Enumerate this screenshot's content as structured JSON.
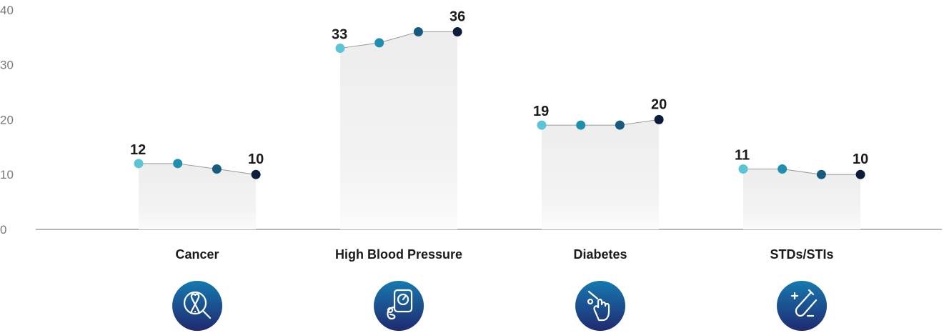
{
  "chart_data": {
    "type": "line",
    "title": "",
    "xlabel": "",
    "ylabel": "",
    "ylim": [
      0,
      40
    ],
    "yticks": [
      0,
      10,
      20,
      30,
      40
    ],
    "grid": false,
    "categories": [
      {
        "label": "Cancer",
        "icon": "ribbon-magnifier-icon",
        "values": [
          12,
          12,
          11,
          10
        ],
        "labels": [
          "12",
          "10"
        ]
      },
      {
        "label": "High Blood Pressure",
        "icon": "blood-pressure-monitor-icon",
        "values": [
          33,
          34,
          36,
          36
        ],
        "labels": [
          "33",
          "36"
        ]
      },
      {
        "label": "Diabetes",
        "icon": "glucose-finger-prick-icon",
        "values": [
          19,
          19,
          19,
          20
        ],
        "labels": [
          "19",
          "20"
        ]
      },
      {
        "label": "STDs/STIs",
        "icon": "test-tube-plus-minus-icon",
        "values": [
          11,
          11,
          10,
          10
        ],
        "labels": [
          "11",
          "10"
        ]
      }
    ],
    "point_colors": [
      "#5bc4d6",
      "#1f8fb0",
      "#175c80",
      "#0c1d3c"
    ],
    "icon_gradient": [
      "#1679b0",
      "#1f2a70"
    ]
  }
}
